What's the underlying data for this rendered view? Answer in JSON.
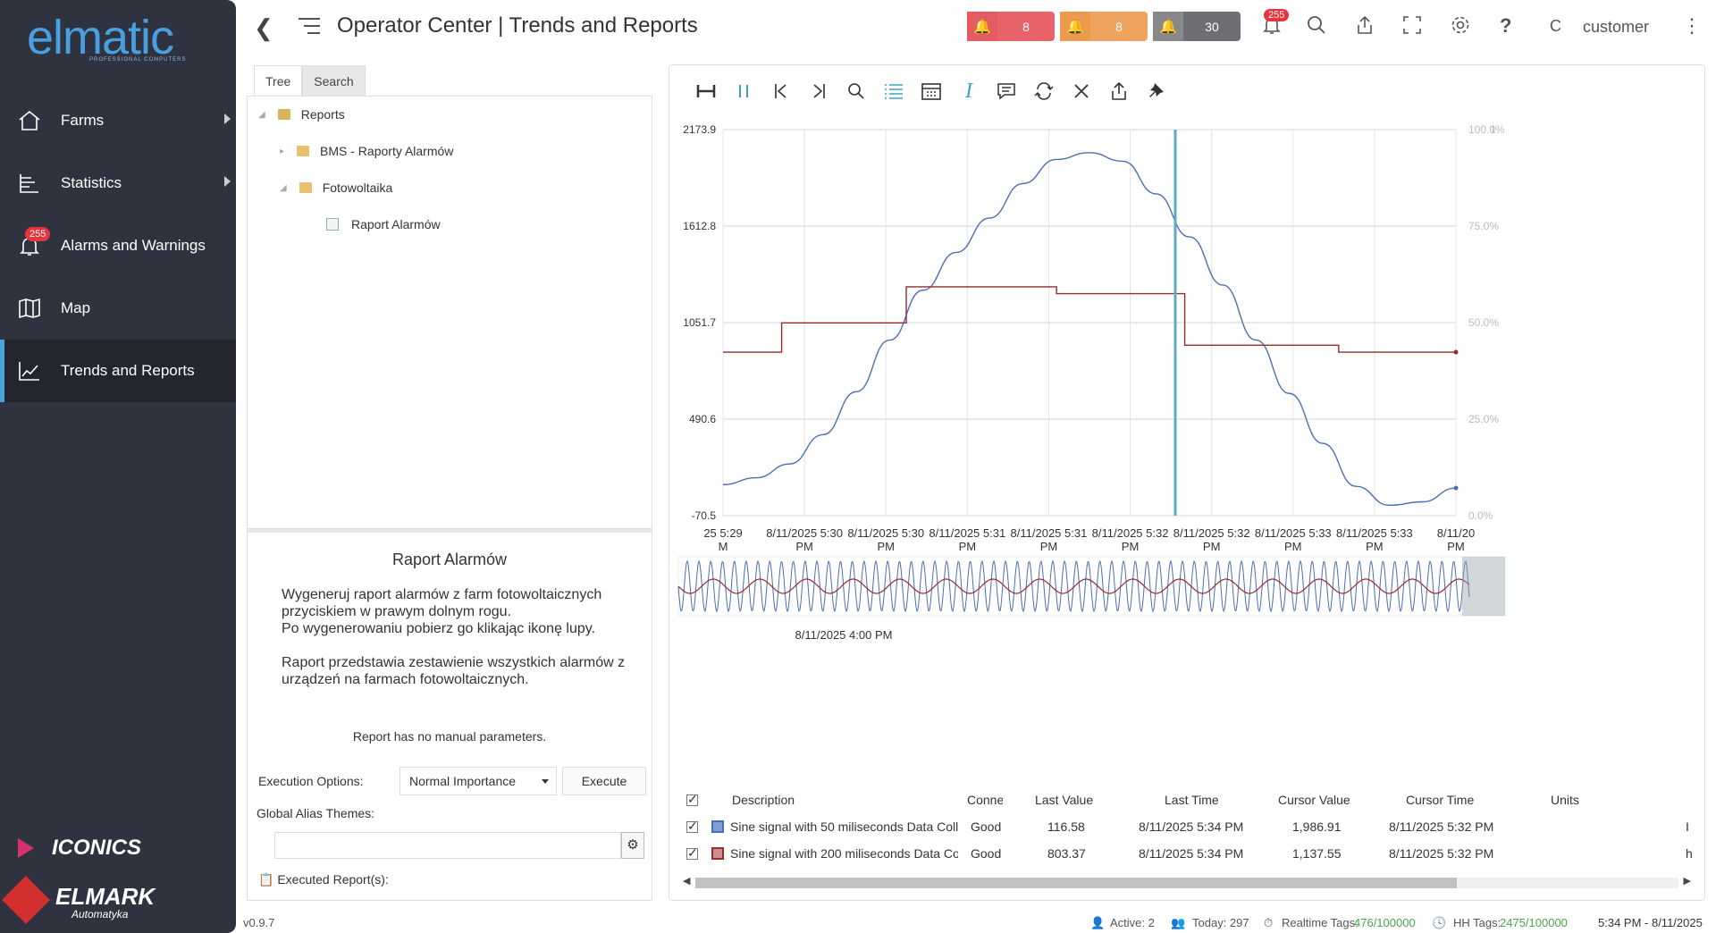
{
  "sidebar": {
    "logo": "elmatic",
    "logo_sub": "PROFESSIONAL COMPUTERS",
    "items": [
      {
        "label": "Farms",
        "icon": "home-icon",
        "has_arrow": true
      },
      {
        "label": "Statistics",
        "icon": "tree-icon",
        "has_arrow": true
      },
      {
        "label": "Alarms and Warnings",
        "icon": "bell-icon",
        "badge": "255"
      },
      {
        "label": "Map",
        "icon": "map-icon"
      },
      {
        "label": "Trends and Reports",
        "icon": "trend-icon",
        "active": true
      }
    ],
    "brand_iconics": "ICONICS",
    "brand_elmark": "ELMARK",
    "brand_elmark_sub": "Automatyka"
  },
  "header": {
    "title": "Operator Center | Trends and Reports",
    "alarms": [
      {
        "count": "8",
        "color": "#e8646a"
      },
      {
        "count": "8",
        "color": "#eea35e"
      },
      {
        "count": "30",
        "color": "#6d6f75"
      }
    ],
    "notif_badge": "255",
    "user_initial": "C",
    "user": "customer"
  },
  "tree_tabs": [
    "Tree",
    "Search"
  ],
  "tree": {
    "root": "Reports",
    "items": [
      {
        "label": "BMS - Raporty Alarmów",
        "level": 1
      },
      {
        "label": "Fotowoltaika",
        "level": 1
      },
      {
        "label": "Raport Alarmów",
        "level": 2
      }
    ]
  },
  "details": {
    "title": "Raport Alarmów",
    "desc1": "Wygeneruj raport alarmów z farm fotowoltaicznych przyciskiem w prawym dolnym rogu.",
    "desc2": "Po wygenerowaniu pobierz go klikając ikonę lupy.",
    "desc3": "Raport przedstawia zestawienie wszystkich alarmów z urządzeń na farmach fotowoltaicznych.",
    "no_params": "Report has no manual parameters.",
    "exec_label": "Execution Options:",
    "exec_option": "Normal Importance",
    "exec_button": "Execute",
    "alias_label": "Global Alias Themes:",
    "executed": "Executed Report(s):"
  },
  "chart_data": {
    "type": "line",
    "y_ticks": [
      "2173.9",
      "1612.8",
      "1051.7",
      "490.6",
      "-70.5"
    ],
    "y2_ticks": [
      "100.0%",
      "75.0%",
      "50.0%",
      "25.0%",
      "0.0%"
    ],
    "y2_top_extra": "1",
    "ylim": [
      -70.5,
      2173.9
    ],
    "x_ticks": [
      [
        "25 5:29",
        "M"
      ],
      [
        "8/11/2025 5:30",
        "PM"
      ],
      [
        "8/11/2025 5:30",
        "PM"
      ],
      [
        "8/11/2025 5:31",
        "PM"
      ],
      [
        "8/11/2025 5:31",
        "PM"
      ],
      [
        "8/11/2025 5:32",
        "PM"
      ],
      [
        "8/11/2025 5:32",
        "PM"
      ],
      [
        "8/11/2025 5:33",
        "PM"
      ],
      [
        "8/11/2025 5:33",
        "PM"
      ],
      [
        "8/11/20",
        "PM"
      ]
    ],
    "overview_label": "8/11/2025 4:00 PM",
    "series": [
      {
        "color": "#4a6fb5",
        "values": [
          110,
          150,
          230,
          400,
          650,
          950,
          1240,
          1460,
          1660,
          1860,
          2000,
          2040,
          1990,
          1800,
          1550,
          1270,
          950,
          640,
          350,
          100,
          -10,
          10,
          90
        ]
      },
      {
        "color": "#9b2a2a",
        "steps": [
          [
            0,
            880
          ],
          [
            0.16,
            880
          ],
          [
            0.16,
            1050
          ],
          [
            0.5,
            1050
          ],
          [
            0.5,
            1260
          ],
          [
            0.91,
            1260
          ],
          [
            0.91,
            1220
          ],
          [
            1.26,
            1220
          ],
          [
            1.26,
            920
          ],
          [
            1.68,
            920
          ],
          [
            1.68,
            880
          ],
          [
            2.0,
            880
          ]
        ]
      }
    ]
  },
  "legend": {
    "headers": [
      "Description",
      "Conne",
      "Last Value",
      "Last Time",
      "Cursor Value",
      "Cursor Time",
      "Units"
    ],
    "rows": [
      {
        "color": "#4a6fb5",
        "description": "Sine signal with 50 miliseconds Data Coll",
        "conn": "Good",
        "last_value": "116.58",
        "last_time": "8/11/2025 5:34 PM",
        "cursor_value": "1,986.91",
        "cursor_time": "8/11/2025 5:32 PM",
        "units": "I"
      },
      {
        "color": "#9b2a2a",
        "description": "Sine signal with 200 miliseconds Data Co",
        "conn": "Good",
        "last_value": "803.37",
        "last_time": "8/11/2025 5:34 PM",
        "cursor_value": "1,137.55",
        "cursor_time": "8/11/2025 5:32 PM",
        "units": "h"
      }
    ]
  },
  "footer": {
    "version": "v0.9.7",
    "active": "Active: 2",
    "today": "Today: 297",
    "realtime_label": "Realtime Tags:",
    "realtime_value": "476/100000",
    "hh_label": "HH Tags:",
    "hh_value": "2475/100000",
    "clock": "5:34 PM - 8/11/2025"
  }
}
